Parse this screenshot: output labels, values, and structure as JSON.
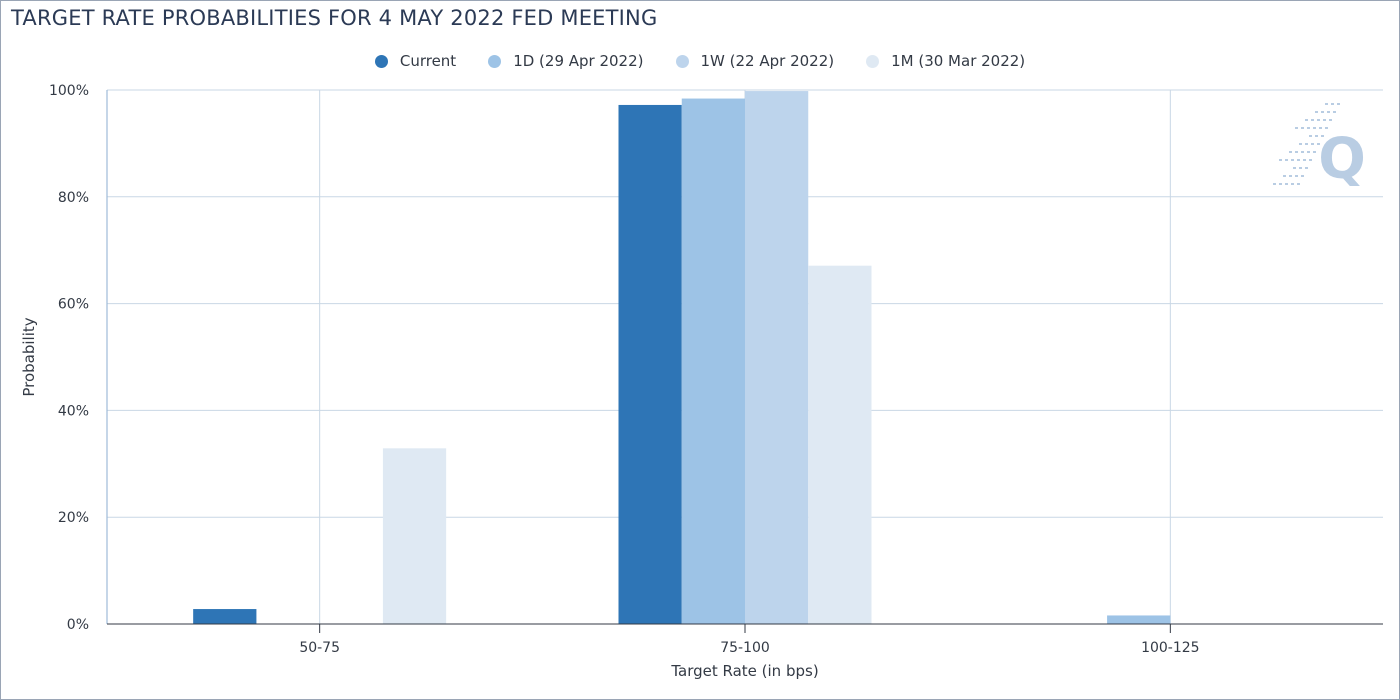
{
  "chart_data": {
    "type": "bar",
    "title": "TARGET RATE PROBABILITIES FOR 4 MAY 2022 FED MEETING",
    "xlabel": "Target Rate (in bps)",
    "ylabel": "Probability",
    "categories": [
      "50-75",
      "75-100",
      "100-125"
    ],
    "y_ticks": [
      "0%",
      "20%",
      "40%",
      "60%",
      "80%",
      "100%"
    ],
    "ylim": [
      0,
      100
    ],
    "grid": true,
    "legend_position": "top-center",
    "series": [
      {
        "name": "Current",
        "color": "#2e75b6",
        "values": [
          2.8,
          97.2,
          0
        ]
      },
      {
        "name": "1D (29 Apr 2022)",
        "color": "#9dc3e6",
        "values": [
          0,
          98.4,
          1.6
        ]
      },
      {
        "name": "1W (22 Apr 2022)",
        "color": "#bdd4ec",
        "values": [
          0,
          99.8,
          0
        ]
      },
      {
        "name": "1M (30 Mar 2022)",
        "color": "#dfe9f3",
        "values": [
          32.9,
          67.1,
          0
        ]
      }
    ],
    "watermark": "Q"
  }
}
